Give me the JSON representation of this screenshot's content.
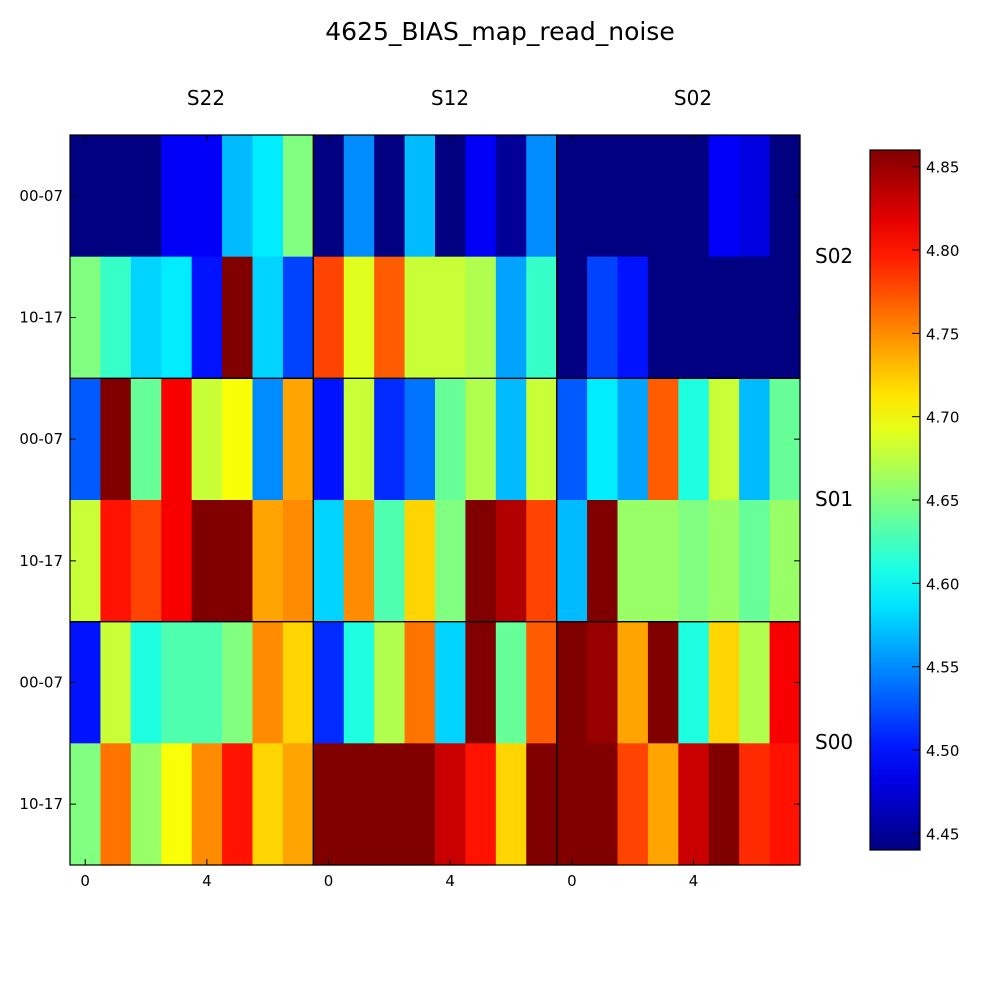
{
  "chart_data": {
    "type": "heatmap",
    "title": "4625_BIAS_map_read_noise",
    "column_panels": [
      "S22",
      "S12",
      "S02"
    ],
    "row_panels": [
      "S02",
      "S01",
      "S00"
    ],
    "row_tick_labels": [
      "00-07",
      "10-17"
    ],
    "x_tick_labels": [
      "0",
      "4"
    ],
    "colorbar": {
      "min": 4.44,
      "max": 4.86,
      "ticks": [
        "4.85",
        "4.80",
        "4.75",
        "4.70",
        "4.65",
        "4.60",
        "4.55",
        "4.50",
        "4.45"
      ],
      "colormap": "jet"
    },
    "grid": false,
    "legend_placement": "right",
    "panels": [
      {
        "row": "S02",
        "col": "S22",
        "values": [
          [
            4.44,
            4.44,
            4.44,
            4.49,
            4.49,
            4.57,
            4.59,
            4.65
          ],
          [
            4.65,
            4.62,
            4.58,
            4.59,
            4.5,
            4.86,
            4.58,
            4.52
          ]
        ]
      },
      {
        "row": "S02",
        "col": "S12",
        "values": [
          [
            4.44,
            4.55,
            4.44,
            4.57,
            4.44,
            4.49,
            4.45,
            4.55
          ],
          [
            4.78,
            4.69,
            4.77,
            4.68,
            4.68,
            4.67,
            4.56,
            4.62
          ]
        ]
      },
      {
        "row": "S02",
        "col": "S02",
        "values": [
          [
            4.44,
            4.44,
            4.44,
            4.44,
            4.44,
            4.49,
            4.48,
            4.44
          ],
          [
            4.44,
            4.52,
            4.5,
            4.44,
            4.44,
            4.44,
            4.44,
            4.44
          ]
        ]
      },
      {
        "row": "S01",
        "col": "S22",
        "values": [
          [
            4.53,
            4.86,
            4.64,
            4.81,
            4.68,
            4.7,
            4.55,
            4.74
          ],
          [
            4.68,
            4.8,
            4.78,
            4.81,
            4.86,
            4.86,
            4.74,
            4.75
          ]
        ]
      },
      {
        "row": "S01",
        "col": "S12",
        "values": [
          [
            4.5,
            4.68,
            4.51,
            4.54,
            4.64,
            4.67,
            4.57,
            4.68
          ],
          [
            4.58,
            4.75,
            4.63,
            4.72,
            4.65,
            4.86,
            4.84,
            4.78
          ]
        ]
      },
      {
        "row": "S01",
        "col": "S02",
        "values": [
          [
            4.53,
            4.59,
            4.56,
            4.77,
            4.61,
            4.68,
            4.57,
            4.64
          ],
          [
            4.57,
            4.86,
            4.66,
            4.66,
            4.65,
            4.66,
            4.64,
            4.66
          ]
        ]
      },
      {
        "row": "S00",
        "col": "S22",
        "values": [
          [
            4.5,
            4.68,
            4.61,
            4.63,
            4.63,
            4.65,
            4.75,
            4.72
          ],
          [
            4.65,
            4.76,
            4.66,
            4.7,
            4.75,
            4.8,
            4.72,
            4.74
          ]
        ]
      },
      {
        "row": "S00",
        "col": "S12",
        "values": [
          [
            4.51,
            4.61,
            4.67,
            4.76,
            4.58,
            4.86,
            4.64,
            4.77
          ],
          [
            4.86,
            4.86,
            4.86,
            4.86,
            4.83,
            4.8,
            4.72,
            4.86
          ]
        ]
      },
      {
        "row": "S00",
        "col": "S02",
        "values": [
          [
            4.86,
            4.85,
            4.74,
            4.86,
            4.61,
            4.72,
            4.67,
            4.81
          ],
          [
            4.86,
            4.86,
            4.78,
            4.74,
            4.83,
            4.86,
            4.79,
            4.8
          ]
        ]
      }
    ]
  }
}
